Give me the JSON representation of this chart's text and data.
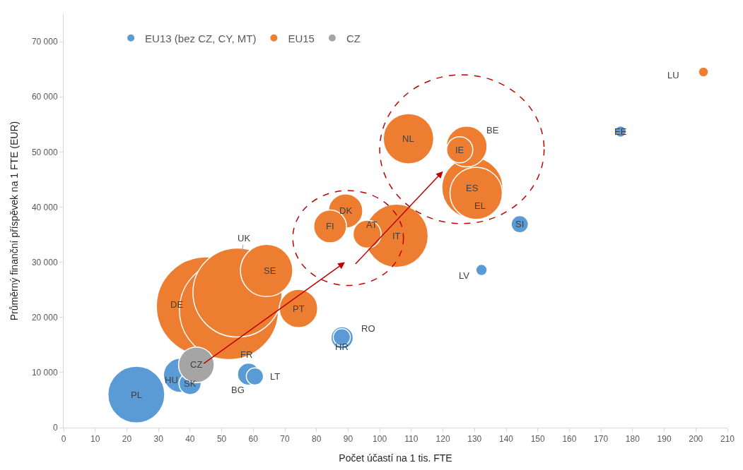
{
  "chart_data": {
    "type": "bubble",
    "xlabel": "Počet účastí na 1 tis. FTE",
    "ylabel": "Průměrný finanční příspěvek na 1 FTE (EUR)",
    "xlim": [
      0,
      210
    ],
    "xticks": [
      0,
      10,
      20,
      30,
      40,
      50,
      60,
      70,
      80,
      90,
      100,
      110,
      120,
      130,
      140,
      150,
      160,
      170,
      180,
      190,
      200,
      210
    ],
    "ylim": [
      0,
      75000
    ],
    "yticks": [
      {
        "value": 0,
        "label": "0"
      },
      {
        "value": 10000,
        "label": "10 000"
      },
      {
        "value": 20000,
        "label": "20 000"
      },
      {
        "value": 30000,
        "label": "30 000"
      },
      {
        "value": 40000,
        "label": "40 000"
      },
      {
        "value": 50000,
        "label": "50 000"
      },
      {
        "value": 60000,
        "label": "60 000"
      },
      {
        "value": 70000,
        "label": "70 000"
      }
    ],
    "legend": "top left",
    "series": [
      {
        "name": "EU13 (bez CZ, CY, MT)",
        "color": "#5b9bd5",
        "x": [
          23,
          37,
          40,
          58.5,
          60.5,
          88.1,
          88,
          132.2,
          144.3,
          176.2
        ],
        "values": [
          6000,
          9500,
          8000,
          9700,
          9300,
          16300,
          16400,
          28600,
          36900,
          53700
        ],
        "sizes": [
          0.33,
          0.12,
          0.05,
          0.05,
          0.03,
          0.05,
          0.03,
          0.013,
          0.03,
          0.013
        ]
      },
      {
        "name": "EU15",
        "color": "#ed7d31",
        "x": [
          45,
          52.3,
          55,
          105.3,
          129.3,
          130.5,
          64.2,
          109.1,
          127.5,
          74.3,
          89.2,
          84.3,
          96,
          125.3,
          202.4
        ],
        "values": [
          22000,
          21300,
          24500,
          34800,
          43500,
          42500,
          28500,
          52400,
          51000,
          21600,
          39300,
          36500,
          35100,
          50400,
          64500
        ],
        "sizes": [
          1,
          1,
          0.81,
          0.41,
          0.38,
          0.28,
          0.28,
          0.26,
          0.17,
          0.15,
          0.12,
          0.11,
          0.08,
          0.07,
          0.01
        ]
      },
      {
        "name": "CZ",
        "color": "#a5a5a5",
        "x": [
          42
        ],
        "values": [
          11400
        ],
        "sizes": [
          0.13
        ]
      }
    ],
    "annotations": [
      {
        "text": "PL",
        "x": 23,
        "y": 6000
      },
      {
        "text": "HU",
        "x": 37,
        "y": 9500
      },
      {
        "text": "SK",
        "x": 40,
        "y": 8000
      },
      {
        "text": "CZ",
        "x": 42,
        "y": 11400
      },
      {
        "text": "BG",
        "x": 58.5,
        "y": 9700
      },
      {
        "text": "LT",
        "x": 60.5,
        "y": 9300
      },
      {
        "text": "HR",
        "x": 88.1,
        "y": 16300
      },
      {
        "text": "RO",
        "x": 88,
        "y": 16400
      },
      {
        "text": "LV",
        "x": 132.2,
        "y": 28600
      },
      {
        "text": "SI",
        "x": 144.3,
        "y": 36900
      },
      {
        "text": "EE",
        "x": 176.2,
        "y": 53700
      },
      {
        "text": "LU",
        "x": 202.4,
        "y": 64500
      },
      {
        "text": "DE",
        "x": 45,
        "y": 22000
      },
      {
        "text": "UK",
        "x": 55,
        "y": 24500
      },
      {
        "text": "SE",
        "x": 64.2,
        "y": 28500
      },
      {
        "text": "FR",
        "x": 52.3,
        "y": 21300
      },
      {
        "text": "PT",
        "x": 74.3,
        "y": 21600
      },
      {
        "text": "FI",
        "x": 84.3,
        "y": 36500
      },
      {
        "text": "DK",
        "x": 89.2,
        "y": 39300
      },
      {
        "text": "AT",
        "x": 96,
        "y": 35100
      },
      {
        "text": "IT",
        "x": 105.3,
        "y": 34800
      },
      {
        "text": "NL",
        "x": 109.1,
        "y": 52400
      },
      {
        "text": "IE",
        "x": 125.3,
        "y": 50400
      },
      {
        "text": "BE",
        "x": 127.5,
        "y": 51000
      },
      {
        "text": "ES",
        "x": 129.3,
        "y": 43500
      },
      {
        "text": "EL",
        "x": 130.5,
        "y": 42500
      }
    ]
  }
}
